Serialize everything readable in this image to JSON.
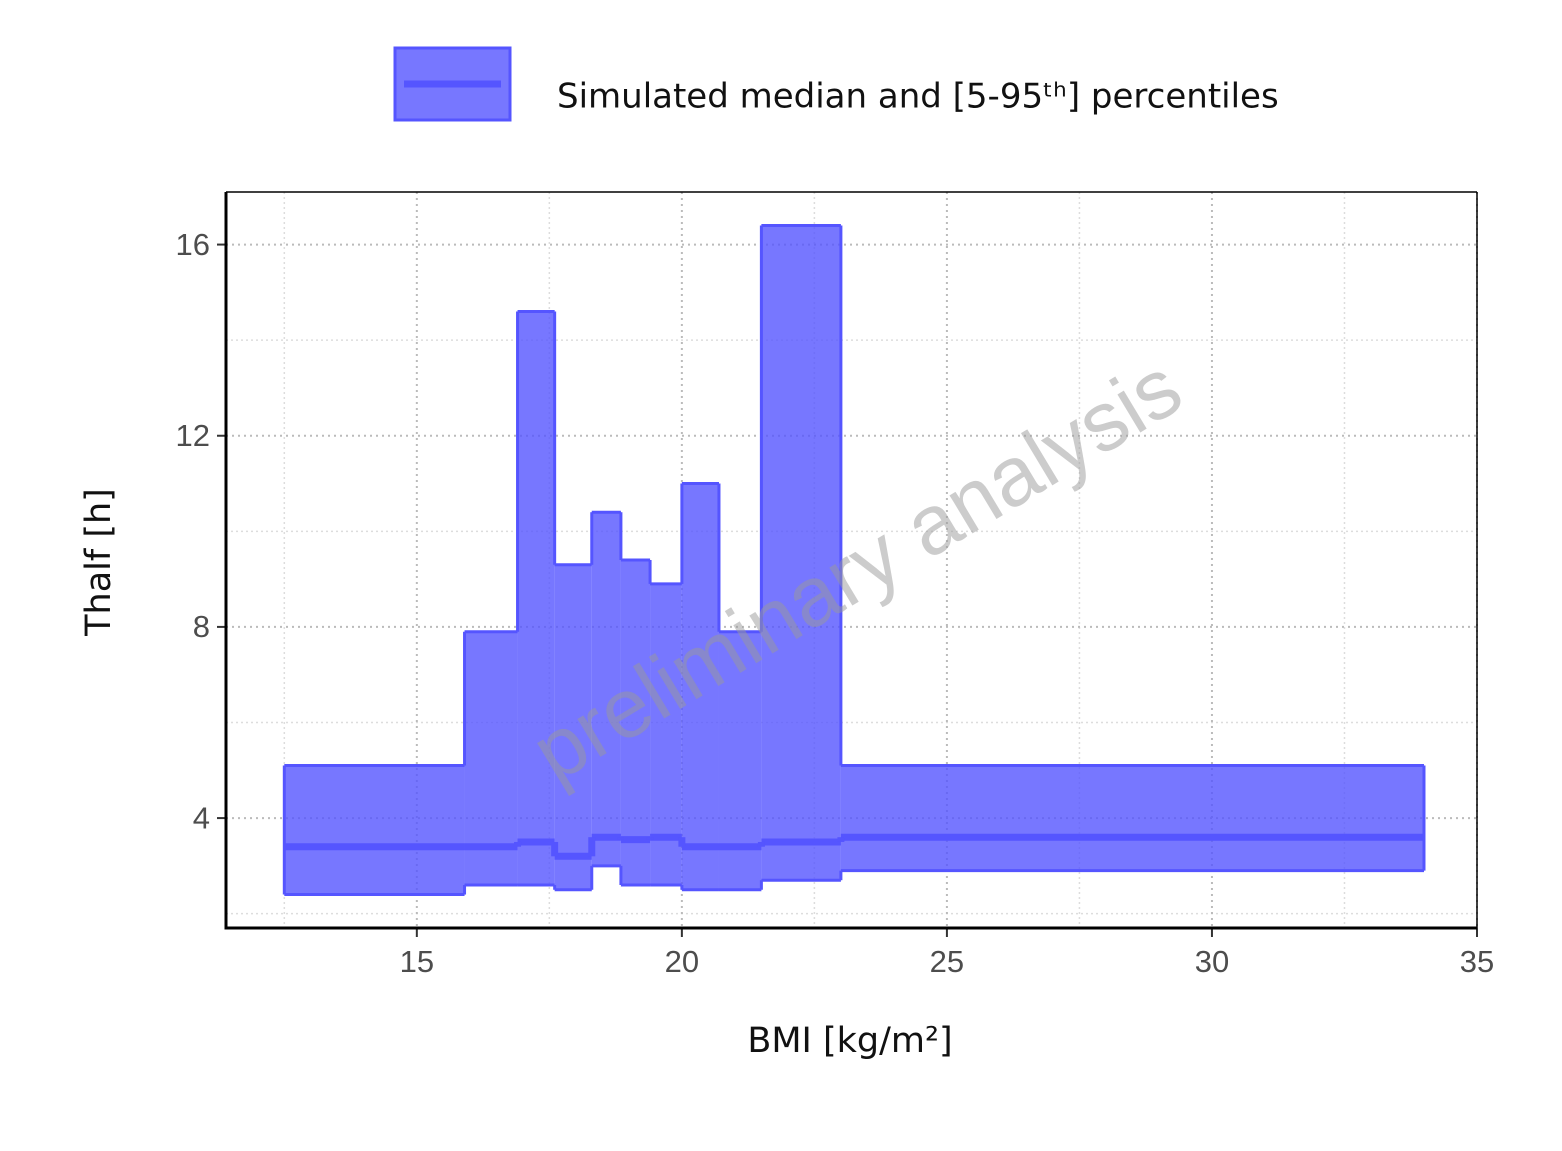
{
  "chart_data": {
    "type": "step_band",
    "watermark": "preliminary analysis",
    "xlabel": "BMI [kg/m²]",
    "ylabel": "Thalf [h]",
    "bins": [
      12.5,
      15.9,
      16.9,
      17.6,
      18.3,
      18.85,
      19.4,
      20,
      20.7,
      21.5,
      23,
      34
    ],
    "series": [
      {
        "name": "Simulated median and [5-95ᵗʰ] percentiles",
        "color": "#5555ff",
        "upper": [
          5.1,
          7.9,
          14.6,
          9.3,
          10.4,
          9.4,
          8.9,
          11.0,
          7.9,
          16.4,
          5.1
        ],
        "median": [
          3.4,
          3.4,
          3.5,
          3.2,
          3.6,
          3.55,
          3.6,
          3.4,
          3.4,
          3.5,
          3.6
        ],
        "lower": [
          2.4,
          2.6,
          2.6,
          2.5,
          3.0,
          2.6,
          2.6,
          2.5,
          2.5,
          2.7,
          2.9
        ]
      }
    ],
    "xlim": [
      11.4,
      35
    ],
    "ylim": [
      1.7,
      17.1
    ],
    "xticks": [
      15,
      20,
      25,
      30,
      35
    ],
    "yticks": [
      4,
      8,
      12,
      16
    ],
    "grid": true,
    "legend": "top"
  }
}
